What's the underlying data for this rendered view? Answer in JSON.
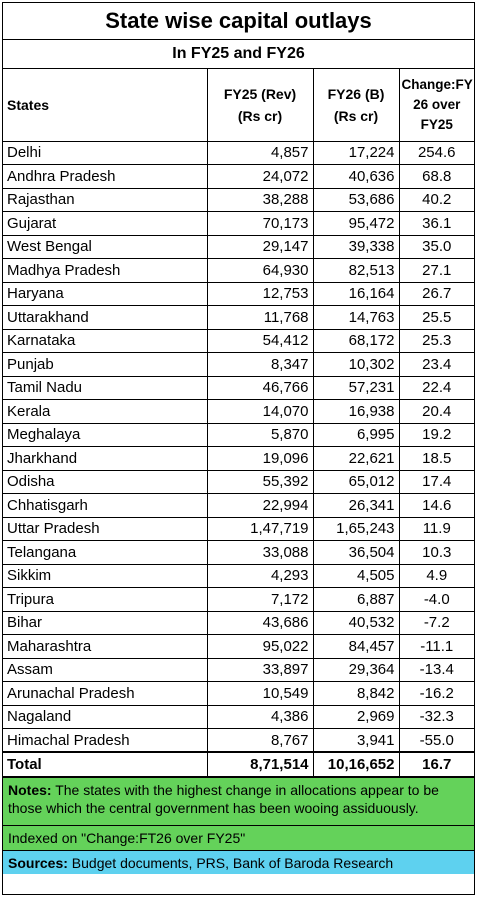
{
  "title": "State wise capital outlays",
  "subtitle": "In FY25 and FY26",
  "headers": {
    "states": "States",
    "fy25": "FY25 (Rev) (Rs cr)",
    "fy26": "FY26 (B) (Rs cr)",
    "change": "Change:FY 26 over FY25"
  },
  "rows": [
    {
      "state": "Delhi",
      "fy25": "4,857",
      "fy26": "17,224",
      "change": "254.6"
    },
    {
      "state": "Andhra Pradesh",
      "fy25": "24,072",
      "fy26": "40,636",
      "change": "68.8"
    },
    {
      "state": "Rajasthan",
      "fy25": "38,288",
      "fy26": "53,686",
      "change": "40.2"
    },
    {
      "state": "Gujarat",
      "fy25": "70,173",
      "fy26": "95,472",
      "change": "36.1"
    },
    {
      "state": "West Bengal",
      "fy25": "29,147",
      "fy26": "39,338",
      "change": "35.0"
    },
    {
      "state": "Madhya Pradesh",
      "fy25": "64,930",
      "fy26": "82,513",
      "change": "27.1"
    },
    {
      "state": "Haryana",
      "fy25": "12,753",
      "fy26": "16,164",
      "change": "26.7"
    },
    {
      "state": "Uttarakhand",
      "fy25": "11,768",
      "fy26": "14,763",
      "change": "25.5"
    },
    {
      "state": "Karnataka",
      "fy25": "54,412",
      "fy26": "68,172",
      "change": "25.3"
    },
    {
      "state": "Punjab",
      "fy25": "8,347",
      "fy26": "10,302",
      "change": "23.4"
    },
    {
      "state": "Tamil Nadu",
      "fy25": "46,766",
      "fy26": "57,231",
      "change": "22.4"
    },
    {
      "state": "Kerala",
      "fy25": "14,070",
      "fy26": "16,938",
      "change": "20.4"
    },
    {
      "state": "Meghalaya",
      "fy25": "5,870",
      "fy26": "6,995",
      "change": "19.2"
    },
    {
      "state": "Jharkhand",
      "fy25": "19,096",
      "fy26": "22,621",
      "change": "18.5"
    },
    {
      "state": "Odisha",
      "fy25": "55,392",
      "fy26": "65,012",
      "change": "17.4"
    },
    {
      "state": "Chhatisgarh",
      "fy25": "22,994",
      "fy26": "26,341",
      "change": "14.6"
    },
    {
      "state": "Uttar Pradesh",
      "fy25": "1,47,719",
      "fy26": "1,65,243",
      "change": "11.9"
    },
    {
      "state": "Telangana",
      "fy25": "33,088",
      "fy26": "36,504",
      "change": "10.3"
    },
    {
      "state": "Sikkim",
      "fy25": "4,293",
      "fy26": "4,505",
      "change": "4.9"
    },
    {
      "state": "Tripura",
      "fy25": "7,172",
      "fy26": "6,887",
      "change": "-4.0"
    },
    {
      "state": "Bihar",
      "fy25": "43,686",
      "fy26": "40,532",
      "change": "-7.2"
    },
    {
      "state": "Maharashtra",
      "fy25": "95,022",
      "fy26": "84,457",
      "change": "-11.1"
    },
    {
      "state": "Assam",
      "fy25": "33,897",
      "fy26": "29,364",
      "change": "-13.4"
    },
    {
      "state": "Arunachal Pradesh",
      "fy25": "10,549",
      "fy26": "8,842",
      "change": "-16.2"
    },
    {
      "state": "Nagaland",
      "fy25": "4,386",
      "fy26": "2,969",
      "change": "-32.3"
    },
    {
      "state": "Himachal Pradesh",
      "fy25": "8,767",
      "fy26": "3,941",
      "change": "-55.0"
    }
  ],
  "total": {
    "state": "Total",
    "fy25": "8,71,514",
    "fy26": "10,16,652",
    "change": "16.7"
  },
  "notes": {
    "label": "Notes:",
    "text": " The states with the highest change in allocations appear to be those which the central government has been wooing assiduously."
  },
  "indexed": "Indexed on \"Change:FT26 over FY25\"",
  "sources": {
    "label": "Sources:",
    "text": " Budget documents, PRS, Bank of Baroda Research"
  },
  "colors": {
    "notes_bg": "#64d25a",
    "sources_bg": "#5ed1ef"
  }
}
